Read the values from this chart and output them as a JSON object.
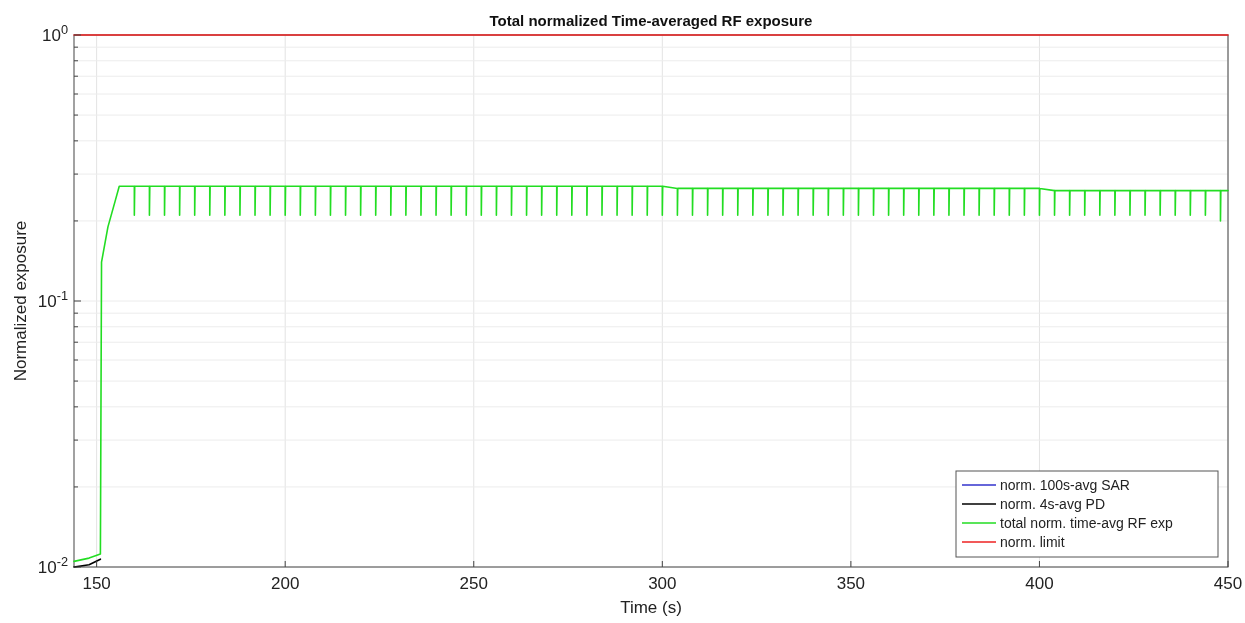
{
  "chart_data": {
    "type": "line",
    "title": "Total normalized Time-averaged RF exposure",
    "xlabel": "Time (s)",
    "ylabel": "Normalized exposure",
    "log": "y",
    "grid": true,
    "legend": "bottom right",
    "xlim": [
      144,
      450
    ],
    "xticks": [
      150,
      200,
      250,
      300,
      350,
      400,
      450
    ],
    "ylim": [
      0.01,
      1
    ],
    "yticks": [
      {
        "value": 0.01,
        "label": "10$^{-2}$"
      },
      {
        "value": 0.02,
        "label": null
      },
      {
        "value": 0.03,
        "label": null
      },
      {
        "value": 0.04,
        "label": null
      },
      {
        "value": 0.05,
        "label": null
      },
      {
        "value": 0.06,
        "label": null
      },
      {
        "value": 0.07,
        "label": null
      },
      {
        "value": 0.08,
        "label": null
      },
      {
        "value": 0.09,
        "label": null
      },
      {
        "value": 0.1,
        "label": "10$^{-1}$"
      },
      {
        "value": 0.2,
        "label": null
      },
      {
        "value": 0.3,
        "label": null
      },
      {
        "value": 0.4,
        "label": null
      },
      {
        "value": 0.5,
        "label": null
      },
      {
        "value": 0.6,
        "label": null
      },
      {
        "value": 0.7,
        "label": null
      },
      {
        "value": 0.8,
        "label": null
      },
      {
        "value": 0.9,
        "label": null
      },
      {
        "value": 1,
        "label": "10$^{0}$"
      }
    ],
    "series": [
      {
        "name": "norm. 100s-avg SAR",
        "color": "#3333cc"
      },
      {
        "name": "norm. 4s-avg PD",
        "color": "#000000",
        "x": [
          144,
          148,
          151
        ],
        "values": [
          0.01,
          0.0102,
          0.0107
        ]
      },
      {
        "name": "total norm. time-avg RF exp",
        "color": "#22dd22",
        "x": [
          144,
          148,
          151,
          151.3,
          153,
          155,
          156,
          160,
          160,
          160.1,
          164,
          164,
          164.1,
          168,
          168,
          168.1,
          172,
          172,
          172.1,
          176,
          176,
          176.1,
          180,
          180,
          180.1,
          184,
          184,
          184.1,
          188,
          188,
          188.1,
          192,
          192,
          192.1,
          196,
          196,
          196.1,
          200,
          200,
          200.1,
          204,
          204,
          204.1,
          208,
          208,
          208.1,
          212,
          212,
          212.1,
          216,
          216,
          216.1,
          220,
          220,
          220.1,
          224,
          224,
          224.1,
          228,
          228,
          228.1,
          232,
          232,
          232.1,
          236,
          236,
          236.1,
          240,
          240,
          240.1,
          244,
          244,
          244.1,
          248,
          248,
          248.1,
          252,
          252,
          252.1,
          256,
          256,
          256.1,
          260,
          260,
          260.1,
          264,
          264,
          264.1,
          268,
          268,
          268.1,
          272,
          272,
          272.1,
          276,
          276,
          276.1,
          280,
          280,
          280.1,
          284,
          284,
          284.1,
          288,
          288,
          288.1,
          292,
          292,
          292.1,
          296,
          296,
          296.1,
          300,
          300,
          300.1,
          304,
          304,
          304.1,
          308,
          308,
          308.1,
          312,
          312,
          312.1,
          316,
          316,
          316.1,
          320,
          320,
          320.1,
          324,
          324,
          324.1,
          328,
          328,
          328.1,
          332,
          332,
          332.1,
          336,
          336,
          336.1,
          340,
          340,
          340.1,
          344,
          344,
          344.1,
          348,
          348,
          348.1,
          352,
          352,
          352.1,
          356,
          356,
          356.1,
          360,
          360,
          360.1,
          364,
          364,
          364.1,
          368,
          368,
          368.1,
          372,
          372,
          372.1,
          376,
          376,
          376.1,
          380,
          380,
          380.1,
          384,
          384,
          384.1,
          388,
          388,
          388.1,
          392,
          392,
          392.1,
          396,
          396,
          396.1,
          400,
          400,
          400.1,
          404,
          404,
          404.1,
          408,
          408,
          408.1,
          412,
          412,
          412.1,
          416,
          416,
          416.1,
          420,
          420,
          420.1,
          424,
          424,
          424.1,
          428,
          428,
          428.1,
          432,
          432,
          432.1,
          436,
          436,
          436.1,
          440,
          440,
          440.1,
          444,
          444,
          444.1,
          448,
          448,
          448.1,
          450
        ],
        "values": [
          0.0105,
          0.0108,
          0.0112,
          0.14,
          0.19,
          0.24,
          0.27,
          0.27,
          0.21,
          0.27,
          0.27,
          0.21,
          0.27,
          0.27,
          0.21,
          0.27,
          0.27,
          0.21,
          0.27,
          0.27,
          0.21,
          0.27,
          0.27,
          0.21,
          0.27,
          0.27,
          0.21,
          0.27,
          0.27,
          0.21,
          0.27,
          0.27,
          0.21,
          0.27,
          0.27,
          0.21,
          0.27,
          0.27,
          0.21,
          0.27,
          0.27,
          0.21,
          0.27,
          0.27,
          0.21,
          0.27,
          0.27,
          0.21,
          0.27,
          0.27,
          0.21,
          0.27,
          0.27,
          0.21,
          0.27,
          0.27,
          0.21,
          0.27,
          0.27,
          0.21,
          0.27,
          0.27,
          0.21,
          0.27,
          0.27,
          0.21,
          0.27,
          0.27,
          0.21,
          0.27,
          0.27,
          0.21,
          0.27,
          0.27,
          0.21,
          0.27,
          0.27,
          0.21,
          0.27,
          0.27,
          0.21,
          0.27,
          0.27,
          0.21,
          0.27,
          0.27,
          0.21,
          0.27,
          0.27,
          0.21,
          0.27,
          0.27,
          0.21,
          0.27,
          0.27,
          0.21,
          0.27,
          0.27,
          0.21,
          0.27,
          0.27,
          0.21,
          0.27,
          0.27,
          0.21,
          0.27,
          0.27,
          0.21,
          0.27,
          0.27,
          0.21,
          0.27,
          0.27,
          0.21,
          0.27,
          0.265,
          0.21,
          0.265,
          0.265,
          0.21,
          0.265,
          0.265,
          0.21,
          0.265,
          0.265,
          0.21,
          0.265,
          0.265,
          0.21,
          0.265,
          0.265,
          0.21,
          0.265,
          0.265,
          0.21,
          0.265,
          0.265,
          0.21,
          0.265,
          0.265,
          0.21,
          0.265,
          0.265,
          0.21,
          0.265,
          0.265,
          0.21,
          0.265,
          0.265,
          0.21,
          0.265,
          0.265,
          0.21,
          0.265,
          0.265,
          0.21,
          0.265,
          0.265,
          0.21,
          0.265,
          0.265,
          0.21,
          0.265,
          0.265,
          0.21,
          0.265,
          0.265,
          0.21,
          0.265,
          0.265,
          0.21,
          0.265,
          0.265,
          0.21,
          0.265,
          0.265,
          0.21,
          0.265,
          0.265,
          0.21,
          0.265,
          0.265,
          0.21,
          0.265,
          0.265,
          0.21,
          0.265,
          0.265,
          0.21,
          0.265,
          0.26,
          0.21,
          0.26,
          0.26,
          0.21,
          0.26,
          0.26,
          0.21,
          0.26,
          0.26,
          0.21,
          0.26,
          0.26,
          0.21,
          0.26,
          0.26,
          0.21,
          0.26,
          0.26,
          0.21,
          0.26,
          0.26,
          0.21,
          0.26,
          0.26,
          0.21,
          0.26,
          0.26,
          0.21,
          0.26,
          0.26,
          0.21,
          0.26,
          0.26,
          0.2,
          0.26,
          0.26
        ]
      },
      {
        "name": "norm. limit",
        "color": "#ee2222",
        "x": [
          144,
          450
        ],
        "values": [
          1,
          1
        ]
      }
    ]
  }
}
